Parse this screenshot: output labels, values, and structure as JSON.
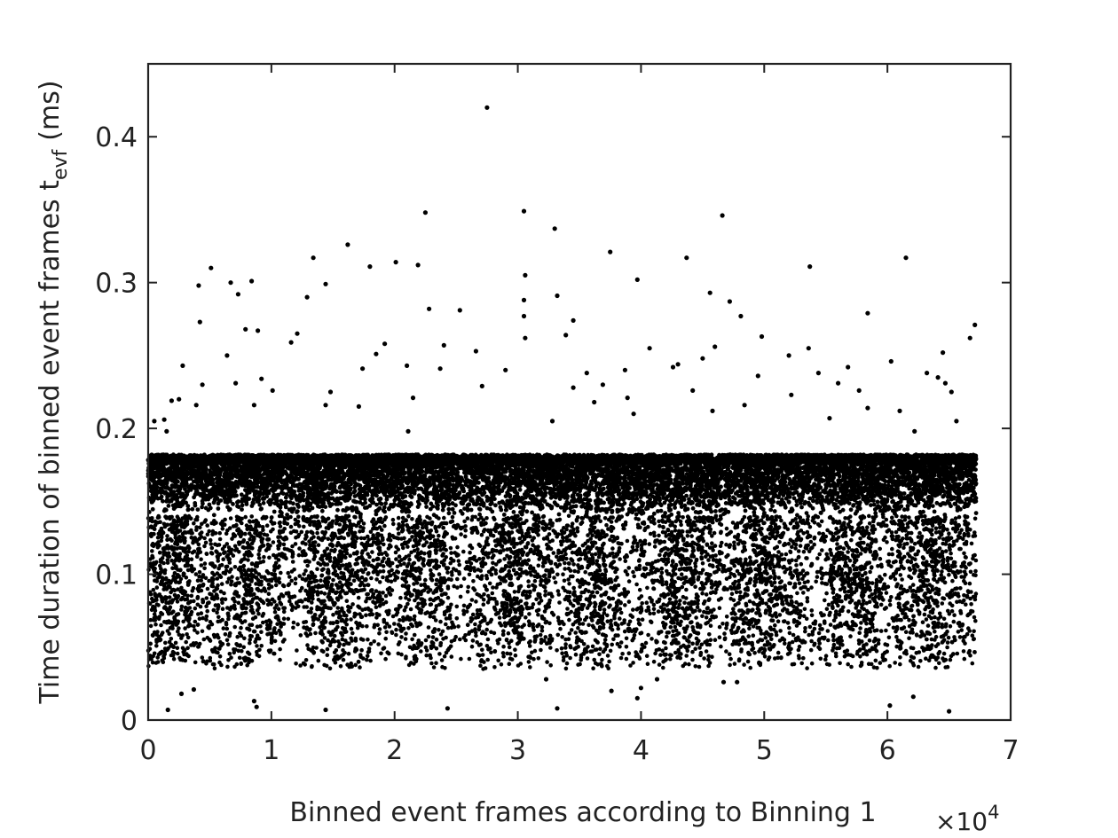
{
  "chart_data": {
    "type": "scatter",
    "title": "",
    "xlabel": "Binned event frames according to Binning 1",
    "ylabel_main": "Time duration of binned event frames t",
    "ylabel_sub": "evf",
    "ylabel_unit": "(ms)",
    "x_multiplier": {
      "prefix": "×10",
      "exponent": "4"
    },
    "xlim": [
      0,
      7
    ],
    "ylim": [
      0,
      0.45
    ],
    "x_ticks": [
      "0",
      "1",
      "2",
      "3",
      "4",
      "5",
      "6",
      "7"
    ],
    "y_ticks": [
      "0",
      "0.1",
      "0.2",
      "0.3",
      "0.4"
    ],
    "grid": false,
    "legend": false,
    "marker_color": "#000000",
    "point_count": 67200,
    "x_range_of_data": [
      0,
      6.72
    ],
    "dense_band": {
      "y_low": 0.14,
      "y_high": 0.182
    },
    "outliers": [
      [
        2.75,
        0.42
      ],
      [
        2.25,
        0.348
      ],
      [
        3.05,
        0.349
      ],
      [
        4.66,
        0.346
      ],
      [
        3.3,
        0.337
      ],
      [
        1.62,
        0.326
      ],
      [
        3.75,
        0.321
      ],
      [
        1.34,
        0.317
      ],
      [
        4.37,
        0.317
      ],
      [
        6.15,
        0.317
      ],
      [
        2.01,
        0.314
      ],
      [
        1.8,
        0.311
      ],
      [
        2.19,
        0.312
      ],
      [
        5.37,
        0.311
      ],
      [
        0.51,
        0.31
      ],
      [
        3.06,
        0.305
      ],
      [
        0.84,
        0.301
      ],
      [
        3.97,
        0.302
      ],
      [
        0.67,
        0.3
      ],
      [
        0.41,
        0.298
      ],
      [
        1.44,
        0.299
      ],
      [
        0.73,
        0.292
      ],
      [
        1.29,
        0.29
      ],
      [
        3.32,
        0.291
      ],
      [
        4.56,
        0.293
      ],
      [
        3.05,
        0.288
      ],
      [
        4.72,
        0.287
      ],
      [
        2.28,
        0.282
      ],
      [
        2.53,
        0.281
      ],
      [
        5.84,
        0.279
      ],
      [
        3.05,
        0.277
      ],
      [
        4.81,
        0.277
      ],
      [
        3.45,
        0.274
      ],
      [
        0.42,
        0.273
      ],
      [
        6.71,
        0.271
      ],
      [
        0.89,
        0.267
      ],
      [
        0.79,
        0.268
      ],
      [
        1.21,
        0.265
      ],
      [
        3.39,
        0.264
      ],
      [
        4.98,
        0.263
      ],
      [
        6.67,
        0.262
      ],
      [
        3.06,
        0.262
      ],
      [
        1.16,
        0.259
      ],
      [
        1.92,
        0.258
      ],
      [
        5.36,
        0.255
      ],
      [
        4.6,
        0.256
      ],
      [
        4.07,
        0.255
      ],
      [
        2.4,
        0.257
      ],
      [
        2.66,
        0.253
      ],
      [
        0.64,
        0.25
      ],
      [
        1.85,
        0.251
      ],
      [
        5.2,
        0.25
      ],
      [
        6.45,
        0.252
      ],
      [
        4.5,
        0.248
      ],
      [
        6.03,
        0.246
      ],
      [
        4.3,
        0.244
      ],
      [
        2.1,
        0.243
      ],
      [
        2.37,
        0.241
      ],
      [
        3.87,
        0.24
      ],
      [
        0.28,
        0.243
      ],
      [
        4.26,
        0.242
      ],
      [
        5.68,
        0.242
      ],
      [
        6.41,
        0.235
      ],
      [
        2.9,
        0.24
      ],
      [
        1.74,
        0.241
      ],
      [
        3.56,
        0.238
      ],
      [
        5.44,
        0.238
      ],
      [
        4.95,
        0.236
      ],
      [
        3.69,
        0.23
      ],
      [
        0.92,
        0.234
      ],
      [
        6.32,
        0.238
      ],
      [
        6.47,
        0.231
      ],
      [
        0.44,
        0.23
      ],
      [
        2.71,
        0.229
      ],
      [
        0.71,
        0.231
      ],
      [
        3.45,
        0.228
      ],
      [
        4.42,
        0.226
      ],
      [
        5.77,
        0.226
      ],
      [
        1.01,
        0.226
      ],
      [
        1.48,
        0.225
      ],
      [
        5.6,
        0.231
      ],
      [
        3.89,
        0.221
      ],
      [
        0.25,
        0.22
      ],
      [
        5.22,
        0.223
      ],
      [
        6.52,
        0.225
      ],
      [
        0.19,
        0.219
      ],
      [
        0.39,
        0.216
      ],
      [
        1.44,
        0.216
      ],
      [
        2.15,
        0.221
      ],
      [
        5.84,
        0.214
      ],
      [
        4.84,
        0.216
      ],
      [
        6.1,
        0.212
      ],
      [
        0.86,
        0.216
      ],
      [
        1.71,
        0.215
      ],
      [
        3.62,
        0.218
      ],
      [
        0.13,
        0.206
      ],
      [
        3.94,
        0.21
      ],
      [
        4.58,
        0.212
      ],
      [
        5.53,
        0.207
      ],
      [
        6.56,
        0.205
      ],
      [
        0.05,
        0.205
      ],
      [
        0.15,
        0.198
      ],
      [
        2.11,
        0.198
      ],
      [
        3.28,
        0.205
      ],
      [
        6.22,
        0.198
      ],
      [
        0.16,
        0.007
      ],
      [
        0.86,
        0.013
      ],
      [
        0.88,
        0.009
      ],
      [
        1.44,
        0.007
      ],
      [
        2.43,
        0.008
      ],
      [
        3.32,
        0.008
      ],
      [
        3.97,
        0.015
      ],
      [
        6.02,
        0.01
      ],
      [
        6.5,
        0.006
      ],
      [
        0.27,
        0.018
      ],
      [
        0.37,
        0.021
      ],
      [
        3.76,
        0.02
      ],
      [
        4.0,
        0.022
      ],
      [
        6.21,
        0.016
      ],
      [
        0.1,
        0.046
      ],
      [
        0.07,
        0.055
      ],
      [
        4.67,
        0.026
      ],
      [
        4.78,
        0.026
      ],
      [
        3.23,
        0.028
      ],
      [
        4.13,
        0.028
      ]
    ]
  }
}
